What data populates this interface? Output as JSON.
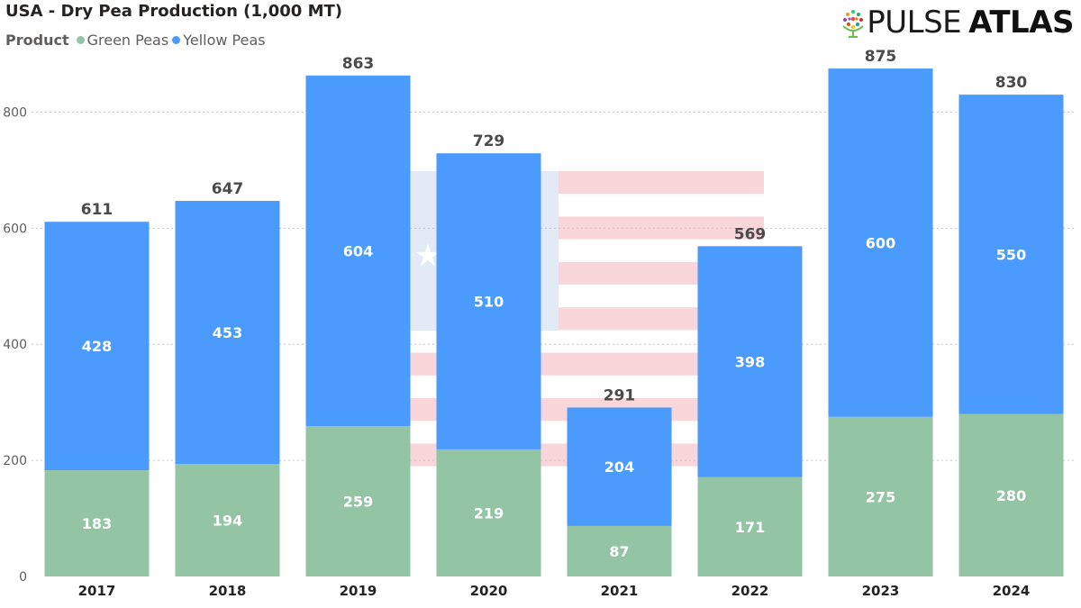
{
  "header": {
    "title": "USA - Dry Pea Production (1,000 MT)",
    "legend_label": "Product",
    "brand_light": "PULSE",
    "brand_bold": "ATLAS"
  },
  "colors": {
    "green": "#93c4a3",
    "blue": "#4a9bfb",
    "grid": "#c8c6c4"
  },
  "icons": [
    "globe-logo-icon",
    "usa-flag-watermark-icon"
  ],
  "chart_data": {
    "type": "bar",
    "stacked": true,
    "title": "USA - Dry Pea Production (1,000 MT)",
    "xlabel": "",
    "ylabel": "",
    "categories": [
      "2017",
      "2018",
      "2019",
      "2020",
      "2021",
      "2022",
      "2023",
      "2024"
    ],
    "series": [
      {
        "name": "Green Peas",
        "color": "#93c4a3",
        "values": [
          183,
          194,
          259,
          219,
          87,
          171,
          275,
          280
        ]
      },
      {
        "name": "Yellow Peas",
        "color": "#4a9bfb",
        "values": [
          428,
          453,
          604,
          510,
          204,
          398,
          600,
          550
        ]
      }
    ],
    "totals": [
      611,
      647,
      863,
      729,
      291,
      569,
      875,
      830
    ],
    "ylim": [
      0,
      900
    ],
    "yticks": [
      0,
      200,
      400,
      600,
      800
    ],
    "grid": true,
    "legend_position": "top-left"
  }
}
